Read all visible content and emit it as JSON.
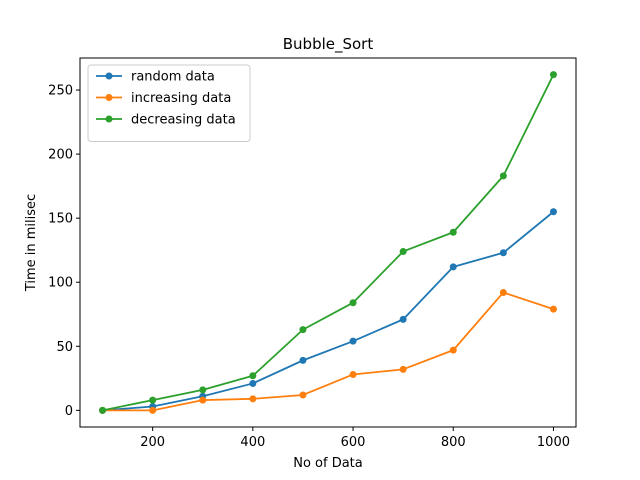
{
  "chart_data": {
    "type": "line",
    "title": "Bubble_Sort",
    "xlabel": "No of Data",
    "ylabel": "Time in milisec",
    "x": [
      100,
      200,
      300,
      400,
      500,
      600,
      700,
      800,
      900,
      1000
    ],
    "xlim": [
      55,
      1045
    ],
    "ylim": [
      -13,
      275
    ],
    "xticks": [
      200,
      400,
      600,
      800,
      1000
    ],
    "yticks": [
      0,
      50,
      100,
      150,
      200,
      250
    ],
    "grid": false,
    "legend_position": "upper-left",
    "series": [
      {
        "name": "random data",
        "color": "#1f77b4",
        "values": [
          0,
          3,
          11,
          21,
          39,
          54,
          71,
          112,
          123,
          155
        ]
      },
      {
        "name": "increasing data",
        "color": "#ff7f0e",
        "values": [
          0,
          0,
          8,
          9,
          12,
          28,
          32,
          47,
          92,
          79
        ]
      },
      {
        "name": "decreasing data",
        "color": "#2ca02c",
        "values": [
          0,
          8,
          16,
          27,
          63,
          84,
          124,
          139,
          183,
          262
        ]
      }
    ]
  }
}
